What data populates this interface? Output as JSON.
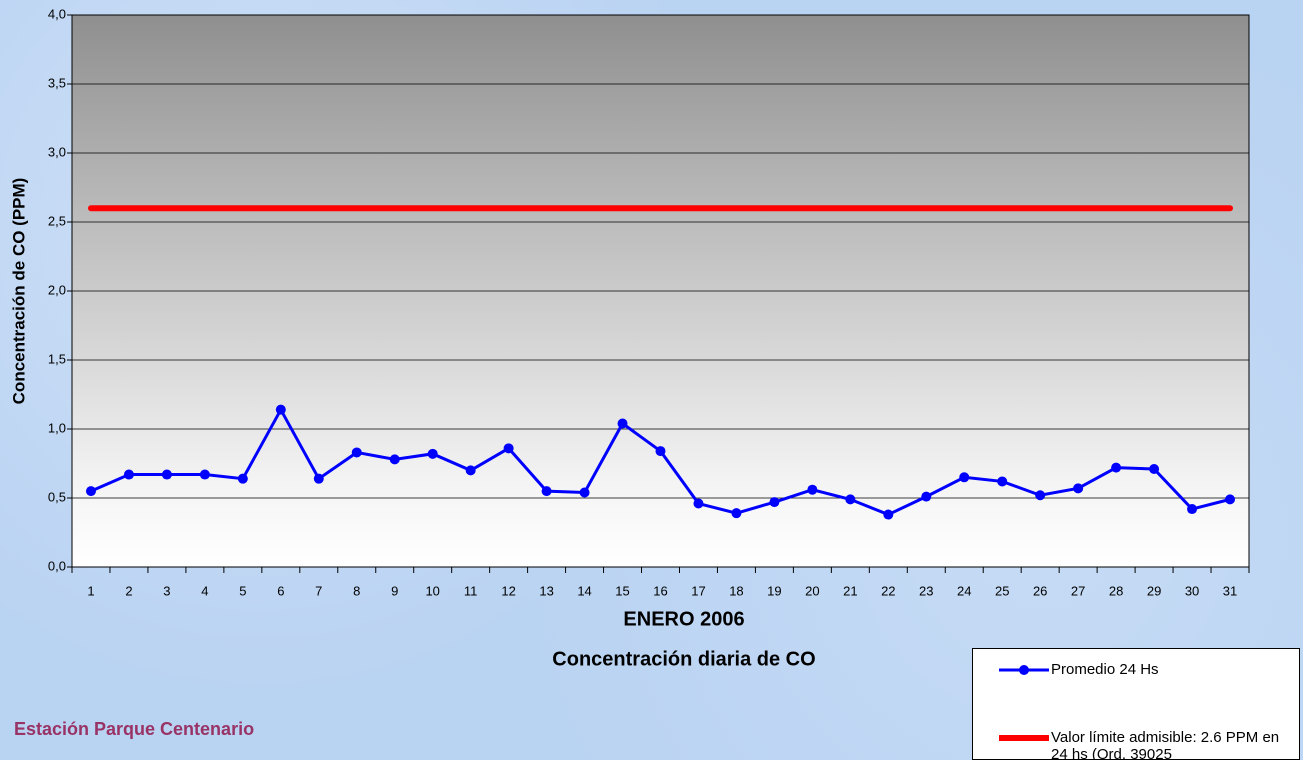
{
  "chart_data": {
    "type": "line",
    "title": "ENERO 2006",
    "subtitle": "Concentración diaria de CO",
    "y_label": "Concentración de CO (PPM)",
    "footer": "Estación Parque Centenario",
    "categories": [
      "1",
      "2",
      "3",
      "4",
      "5",
      "6",
      "7",
      "8",
      "9",
      "10",
      "11",
      "12",
      "13",
      "14",
      "15",
      "16",
      "17",
      "18",
      "19",
      "20",
      "21",
      "22",
      "23",
      "24",
      "25",
      "26",
      "27",
      "28",
      "29",
      "30",
      "31"
    ],
    "series": [
      {
        "name": "Promedio 24 Hs",
        "color": "#0000ff",
        "marker": true,
        "values": [
          0.55,
          0.67,
          0.67,
          0.67,
          0.64,
          1.14,
          0.64,
          0.83,
          0.78,
          0.82,
          0.7,
          0.86,
          0.55,
          0.54,
          1.04,
          0.84,
          0.46,
          0.39,
          0.47,
          0.56,
          0.49,
          0.38,
          0.51,
          0.65,
          0.62,
          0.52,
          0.57,
          0.72,
          0.71,
          0.42,
          0.49
        ]
      },
      {
        "name": "Valor límite admisible: 2.6 PPM en 24 hs (Ord. 39025",
        "color": "#ff0000",
        "marker": false,
        "values": [
          2.6,
          2.6,
          2.6,
          2.6,
          2.6,
          2.6,
          2.6,
          2.6,
          2.6,
          2.6,
          2.6,
          2.6,
          2.6,
          2.6,
          2.6,
          2.6,
          2.6,
          2.6,
          2.6,
          2.6,
          2.6,
          2.6,
          2.6,
          2.6,
          2.6,
          2.6,
          2.6,
          2.6,
          2.6,
          2.6,
          2.6
        ]
      }
    ],
    "ylim": [
      0,
      4
    ],
    "yticks": [
      {
        "value": 0,
        "label": "0,0"
      },
      {
        "value": 0.5,
        "label": "0,5"
      },
      {
        "value": 1,
        "label": "1,0"
      },
      {
        "value": 1.5,
        "label": "1,5"
      },
      {
        "value": 2,
        "label": "2,0"
      },
      {
        "value": 2.5,
        "label": "2,5"
      },
      {
        "value": 3,
        "label": "3,0"
      },
      {
        "value": 3.5,
        "label": "3,5"
      },
      {
        "value": 4,
        "label": "4,0"
      }
    ],
    "grid": true
  }
}
